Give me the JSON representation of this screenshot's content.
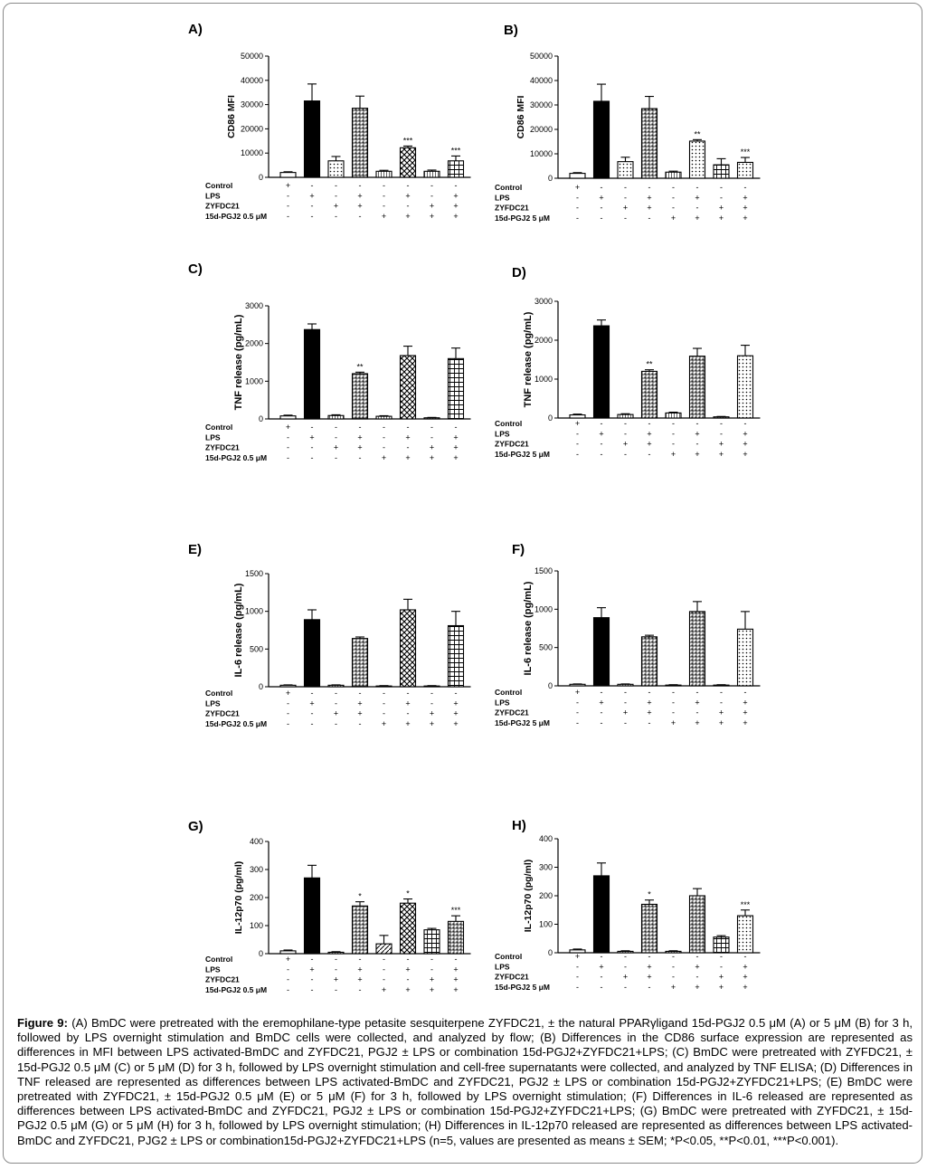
{
  "figure_label": "Figure 9:",
  "caption": "(A) BmDC were pretreated with the eremophilane-type petasite sesquiterpene ZYFDC21, ± the natural PPARγligand 15d-PGJ2 0.5 μM (A) or 5 μM (B) for 3 h, followed by LPS overnight stimulation and BmDC cells were collected, and analyzed by flow; (B) Differences in the CD86 surface expression are represented as differences in MFI between LPS activated-BmDC and ZYFDC21, PGJ2 ± LPS or combination 15d-PGJ2+ZYFDC21+LPS; (C) BmDC were pretreated with ZYFDC21, ± 15d-PGJ2 0.5 μM (C) or 5 μM (D) for 3 h, followed by LPS overnight stimulation and cell-free supernatants were collected, and analyzed by TNF ELISA; (D) Differences in TNF released are represented as differences between LPS activated-BmDC and ZYFDC21, PGJ2 ± LPS or combination 15d-PGJ2+ZYFDC21+LPS; (E) BmDC were pretreated with ZYFDC21, ± 15d-PGJ2 0.5 μM (E) or 5 μM (F) for 3 h, followed by LPS overnight stimulation; (F) Differences in IL-6 released are represented as differences between LPS activated-BmDC and ZYFDC21, PGJ2 ± LPS or combination 15d-PGJ2+ZYFDC21+LPS; (G) BmDC were pretreated with ZYFDC21, ± 15d-PGJ2 0.5 μM (G) or 5 μM (H) for 3 h, followed by LPS overnight stimulation; (H) Differences in IL-12p70 released are represented as differences between LPS activated-BmDC and ZYFDC21, PJG2 ± LPS or combination15d-PGJ2+ZYFDC21+LPS (n=5, values are presented as means ± SEM; *P<0.05, **P<0.01, ***P<0.001).",
  "colors": {
    "frame": "#8a8a8a",
    "bar_fill_dark": "#000000",
    "bar_fill_light": "#ffffff"
  },
  "chart_data": [
    {
      "panel": "A)",
      "type": "bar",
      "ylabel": "CD86 MFI",
      "ylim": [
        0,
        50000
      ],
      "yticks": [
        "0",
        "10000",
        "20000",
        "30000",
        "40000",
        "50000"
      ],
      "row_labels": [
        "Control",
        "LPS",
        "ZYFDC21",
        "15d-PGJ2 0.5 μM"
      ],
      "signs": [
        [
          "+",
          "-",
          "-",
          "-",
          "-",
          "-",
          "-",
          "-"
        ],
        [
          "-",
          "+",
          "-",
          "+",
          "-",
          "+",
          "-",
          "+"
        ],
        [
          "-",
          "-",
          "+",
          "+",
          "-",
          "-",
          "+",
          "+"
        ],
        [
          "-",
          "-",
          "-",
          "-",
          "+",
          "+",
          "+",
          "+"
        ]
      ],
      "values": [
        2000,
        31500,
        6800,
        28500,
        2500,
        12200,
        2500,
        6800
      ],
      "errors": [
        300,
        7000,
        1800,
        5000,
        400,
        700,
        500,
        2000
      ],
      "significance": [
        "",
        "",
        "",
        "",
        "",
        "***",
        "",
        "***"
      ],
      "patterns": [
        "plain",
        "solid",
        "dots",
        "hatch",
        "vlines",
        "cross",
        "vlines",
        "grid"
      ]
    },
    {
      "panel": "B)",
      "type": "bar",
      "ylabel": "CD86 MFI",
      "ylim": [
        0,
        50000
      ],
      "yticks": [
        "0",
        "10000",
        "20000",
        "30000",
        "40000",
        "50000"
      ],
      "row_labels": [
        "Control",
        "LPS",
        "ZYFDC21",
        "15d-PGJ2 5 μM"
      ],
      "signs": [
        [
          "+",
          "-",
          "-",
          "-",
          "-",
          "-",
          "-",
          "-"
        ],
        [
          "-",
          "+",
          "-",
          "+",
          "-",
          "+",
          "-",
          "+"
        ],
        [
          "-",
          "-",
          "+",
          "+",
          "-",
          "-",
          "+",
          "+"
        ],
        [
          "-",
          "-",
          "-",
          "-",
          "+",
          "+",
          "+",
          "+"
        ]
      ],
      "values": [
        2000,
        31500,
        6800,
        28500,
        2500,
        15200,
        5500,
        6500
      ],
      "errors": [
        300,
        7000,
        1800,
        5000,
        400,
        600,
        2500,
        2000
      ],
      "significance": [
        "",
        "",
        "",
        "",
        "",
        "**",
        "",
        "***"
      ],
      "patterns": [
        "plain",
        "solid",
        "dots",
        "hatch",
        "vlines",
        "dots",
        "grid",
        "dots"
      ]
    },
    {
      "panel": "C)",
      "type": "bar",
      "ylabel": "TNF release (pg/mL)",
      "ylim": [
        0,
        3000
      ],
      "yticks": [
        "0",
        "1000",
        "2000",
        "3000"
      ],
      "row_labels": [
        "Control",
        "LPS",
        "ZYFDC21",
        "15d-PGJ2 0.5 μM"
      ],
      "signs": [
        [
          "+",
          "-",
          "-",
          "-",
          "-",
          "-",
          "-",
          "-"
        ],
        [
          "-",
          "+",
          "-",
          "+",
          "-",
          "+",
          "-",
          "+"
        ],
        [
          "-",
          "-",
          "+",
          "+",
          "-",
          "-",
          "+",
          "+"
        ],
        [
          "-",
          "-",
          "-",
          "-",
          "+",
          "+",
          "+",
          "+"
        ]
      ],
      "values": [
        80,
        2370,
        90,
        1200,
        70,
        1680,
        30,
        1600
      ],
      "errors": [
        20,
        150,
        20,
        40,
        15,
        250,
        10,
        280
      ],
      "significance": [
        "",
        "",
        "",
        "**",
        "",
        "",
        "",
        ""
      ],
      "patterns": [
        "plain",
        "solid",
        "vlines",
        "hatch",
        "vlines",
        "cross",
        "vlines",
        "grid"
      ]
    },
    {
      "panel": "D)",
      "type": "bar",
      "ylabel": "TNF release (pg/mL)",
      "ylim": [
        0,
        3000
      ],
      "yticks": [
        "0",
        "1000",
        "2000",
        "3000"
      ],
      "row_labels": [
        "Control",
        "LPS",
        "ZYFDC21",
        "15d-PGJ2 5 μM"
      ],
      "signs": [
        [
          "+",
          "-",
          "-",
          "-",
          "-",
          "-",
          "-",
          "-"
        ],
        [
          "-",
          "+",
          "-",
          "+",
          "-",
          "+",
          "-",
          "+"
        ],
        [
          "-",
          "-",
          "+",
          "+",
          "-",
          "-",
          "+",
          "+"
        ],
        [
          "-",
          "-",
          "-",
          "-",
          "+",
          "+",
          "+",
          "+"
        ]
      ],
      "values": [
        80,
        2370,
        90,
        1200,
        130,
        1590,
        30,
        1600
      ],
      "errors": [
        20,
        150,
        20,
        40,
        20,
        200,
        10,
        270
      ],
      "significance": [
        "",
        "",
        "",
        "**",
        "",
        "",
        "",
        ""
      ],
      "patterns": [
        "plain",
        "solid",
        "vlines",
        "hatch",
        "vlines",
        "hatch",
        "vlines",
        "dots"
      ]
    },
    {
      "panel": "E)",
      "type": "bar",
      "ylabel": "IL-6 release (pg/mL)",
      "ylim": [
        0,
        1500
      ],
      "yticks": [
        "0",
        "500",
        "1000",
        "1500"
      ],
      "row_labels": [
        "Control",
        "LPS",
        "ZYFDC21",
        "15d-PGJ2 0.5 μM"
      ],
      "signs": [
        [
          "+",
          "-",
          "-",
          "-",
          "-",
          "-",
          "-",
          "-"
        ],
        [
          "-",
          "+",
          "-",
          "+",
          "-",
          "+",
          "-",
          "+"
        ],
        [
          "-",
          "-",
          "+",
          "+",
          "-",
          "-",
          "+",
          "+"
        ],
        [
          "-",
          "-",
          "-",
          "-",
          "+",
          "+",
          "+",
          "+"
        ]
      ],
      "values": [
        20,
        890,
        20,
        640,
        10,
        1020,
        10,
        810
      ],
      "errors": [
        5,
        130,
        5,
        20,
        5,
        140,
        5,
        190
      ],
      "significance": [
        "",
        "",
        "",
        "",
        "",
        "",
        "",
        ""
      ],
      "patterns": [
        "plain",
        "solid",
        "vlines",
        "hatch",
        "vlines",
        "cross",
        "vlines",
        "grid"
      ]
    },
    {
      "panel": "F)",
      "type": "bar",
      "ylabel": "IL-6 release (pg/mL)",
      "ylim": [
        0,
        1500
      ],
      "yticks": [
        "0",
        "500",
        "1000",
        "1500"
      ],
      "row_labels": [
        "Control",
        "LPS",
        "ZYFDC21",
        "15d-PGJ2 5 μM"
      ],
      "signs": [
        [
          "+",
          "-",
          "-",
          "-",
          "-",
          "-",
          "-",
          "-"
        ],
        [
          "-",
          "+",
          "-",
          "+",
          "-",
          "+",
          "-",
          "+"
        ],
        [
          "-",
          "-",
          "+",
          "+",
          "-",
          "-",
          "+",
          "+"
        ],
        [
          "-",
          "-",
          "-",
          "-",
          "+",
          "+",
          "+",
          "+"
        ]
      ],
      "values": [
        20,
        890,
        20,
        640,
        10,
        970,
        10,
        740
      ],
      "errors": [
        5,
        130,
        5,
        20,
        5,
        130,
        5,
        230
      ],
      "significance": [
        "",
        "",
        "",
        "",
        "",
        "",
        "",
        ""
      ],
      "patterns": [
        "plain",
        "solid",
        "vlines",
        "hatch",
        "vlines",
        "hatch",
        "vlines",
        "dots"
      ]
    },
    {
      "panel": "G)",
      "type": "bar",
      "ylabel": "IL-12p70 (pg/ml)",
      "ylim": [
        0,
        400
      ],
      "yticks": [
        "0",
        "100",
        "200",
        "300",
        "400"
      ],
      "row_labels": [
        "Control",
        "LPS",
        "ZYFDC21",
        "15d-PGJ2 0.5 μM"
      ],
      "signs": [
        [
          "+",
          "-",
          "-",
          "-",
          "-",
          "-",
          "-",
          "-"
        ],
        [
          "-",
          "+",
          "-",
          "+",
          "-",
          "+",
          "-",
          "+"
        ],
        [
          "-",
          "-",
          "+",
          "+",
          "-",
          "-",
          "+",
          "+"
        ],
        [
          "-",
          "-",
          "-",
          "-",
          "+",
          "+",
          "+",
          "+"
        ]
      ],
      "values": [
        10,
        270,
        5,
        170,
        35,
        180,
        85,
        115
      ],
      "errors": [
        3,
        45,
        2,
        15,
        30,
        15,
        5,
        20
      ],
      "significance": [
        "",
        "",
        "",
        "*",
        "",
        "*",
        "",
        "***"
      ],
      "patterns": [
        "plain",
        "solid",
        "vlines",
        "hatch",
        "diag",
        "cross",
        "grid",
        "hatch"
      ]
    },
    {
      "panel": "H)",
      "type": "bar",
      "ylabel": "IL-12p70 (pg/ml)",
      "ylim": [
        0,
        400
      ],
      "yticks": [
        "0",
        "100",
        "200",
        "300",
        "400"
      ],
      "row_labels": [
        "Control",
        "LPS",
        "ZYFDC21",
        "15d-PGJ2 5 μM"
      ],
      "signs": [
        [
          "+",
          "-",
          "-",
          "-",
          "-",
          "-",
          "-",
          "-"
        ],
        [
          "-",
          "+",
          "-",
          "+",
          "-",
          "+",
          "-",
          "+"
        ],
        [
          "-",
          "-",
          "+",
          "+",
          "-",
          "-",
          "+",
          "+"
        ],
        [
          "-",
          "-",
          "-",
          "-",
          "+",
          "+",
          "+",
          "+"
        ]
      ],
      "values": [
        10,
        270,
        5,
        170,
        5,
        200,
        55,
        130
      ],
      "errors": [
        3,
        45,
        2,
        15,
        2,
        25,
        5,
        20
      ],
      "significance": [
        "",
        "",
        "",
        "*",
        "",
        "",
        "",
        "***"
      ],
      "patterns": [
        "plain",
        "solid",
        "vlines",
        "hatch",
        "vlines",
        "hatch",
        "grid",
        "dots"
      ]
    }
  ]
}
